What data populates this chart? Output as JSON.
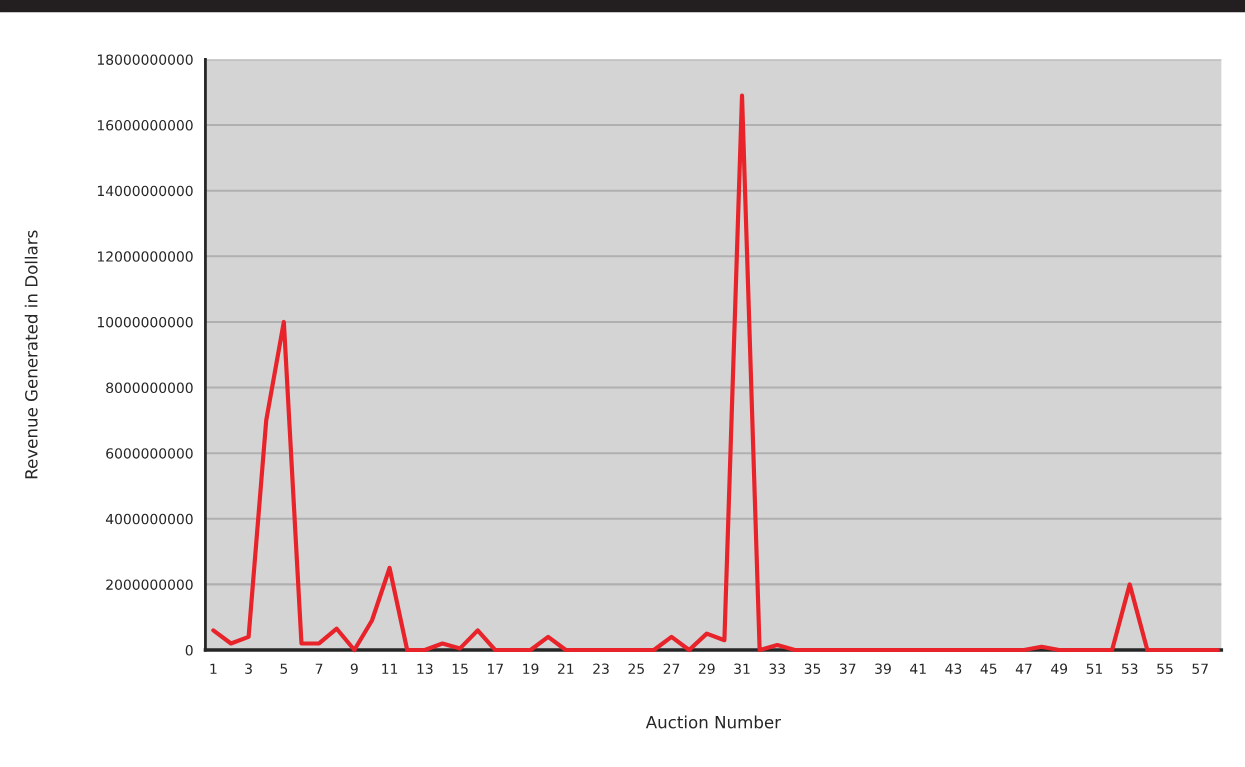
{
  "chart_data": {
    "type": "line",
    "xlabel": "Auction Number",
    "ylabel": "Revenue Generated in Dollars",
    "categories": [
      "1",
      null,
      "3",
      null,
      "5",
      null,
      "7",
      null,
      "9",
      null,
      "11",
      null,
      "13",
      null,
      "15",
      null,
      "17",
      null,
      "19",
      null,
      "21",
      null,
      "23",
      null,
      "25",
      null,
      "27",
      null,
      "29",
      null,
      "31",
      null,
      "33",
      null,
      "35",
      null,
      "37",
      null,
      "39",
      null,
      "41",
      null,
      "43",
      null,
      "45",
      null,
      "47",
      null,
      "49",
      null,
      "51",
      null,
      "53",
      null,
      "55",
      null,
      "57",
      null
    ],
    "series": [
      {
        "color": "#e8232a",
        "values": [
          600000000,
          200000000,
          400000000,
          7000000000,
          10000000000,
          200000000,
          200000000,
          650000000,
          0,
          900000000,
          2500000000,
          0,
          0,
          200000000,
          50000000,
          600000000,
          0,
          0,
          0,
          400000000,
          0,
          0,
          0,
          0,
          0,
          0,
          400000000,
          0,
          500000000,
          300000000,
          16900000000,
          0,
          150000000,
          0,
          0,
          0,
          0,
          0,
          0,
          0,
          0,
          0,
          0,
          0,
          0,
          0,
          0,
          100000000,
          0,
          0,
          0,
          0,
          2000000000,
          0,
          0,
          0,
          0,
          0
        ]
      }
    ],
    "ylim": [
      0,
      18000000000
    ],
    "yticks": [
      0,
      2000000000,
      4000000000,
      6000000000,
      8000000000,
      10000000000,
      12000000000,
      14000000000,
      16000000000,
      18000000000
    ],
    "grid": "y",
    "marker": "none",
    "line_style": "solid"
  }
}
